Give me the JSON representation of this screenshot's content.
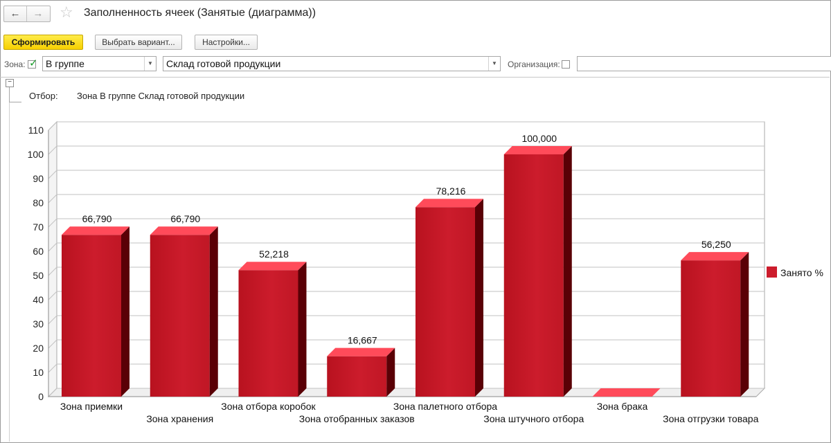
{
  "window": {
    "title": "Заполненность ячеек (Занятые (диаграмма))",
    "nav_back": "←",
    "nav_forward": "→",
    "favorite_icon": "star-icon"
  },
  "toolbar": {
    "generate_label": "Сформировать",
    "choose_variant_label": "Выбрать вариант...",
    "settings_label": "Настройки..."
  },
  "filters": {
    "zone_label": "Зона:",
    "zone_checked": true,
    "zone_condition": "В группе",
    "zone_value": "Склад готовой продукции",
    "organization_label": "Организация:",
    "organization_checked": false,
    "organization_value": ""
  },
  "report": {
    "filter_caption": "Отбор:",
    "filter_text": "Зона В группе Склад готовой продукции"
  },
  "colors": {
    "bar_front": "#cc1c2c",
    "bar_top": "#ff4b5a",
    "bar_side": "#5a0006",
    "accent_yellow": "#f7d000"
  },
  "chart_data": {
    "type": "bar",
    "title": "",
    "xlabel": "",
    "ylabel": "",
    "ylim": [
      0,
      110
    ],
    "ytick_step": 10,
    "ytick_labels": [
      "0",
      "10",
      "20",
      "30",
      "40",
      "50",
      "60",
      "70",
      "80",
      "90",
      "100",
      "110"
    ],
    "categories": [
      "Зона приемки",
      "Зона хранения",
      "Зона отбора коробок",
      "Зона отобранных заказов",
      "Зона палетного отбора",
      "Зона штучного отбора",
      "Зона брака",
      "Зона отгрузки товара"
    ],
    "series": [
      {
        "name": "Занято %",
        "values": [
          66.79,
          66.79,
          52.218,
          16.667,
          78.216,
          100,
          0,
          56.25
        ],
        "labels": [
          "66,790",
          "66,790",
          "52,218",
          "16,667",
          "78,216",
          "100,000",
          "",
          "56,250"
        ]
      }
    ],
    "legend": {
      "position": "right"
    },
    "grid": true
  }
}
